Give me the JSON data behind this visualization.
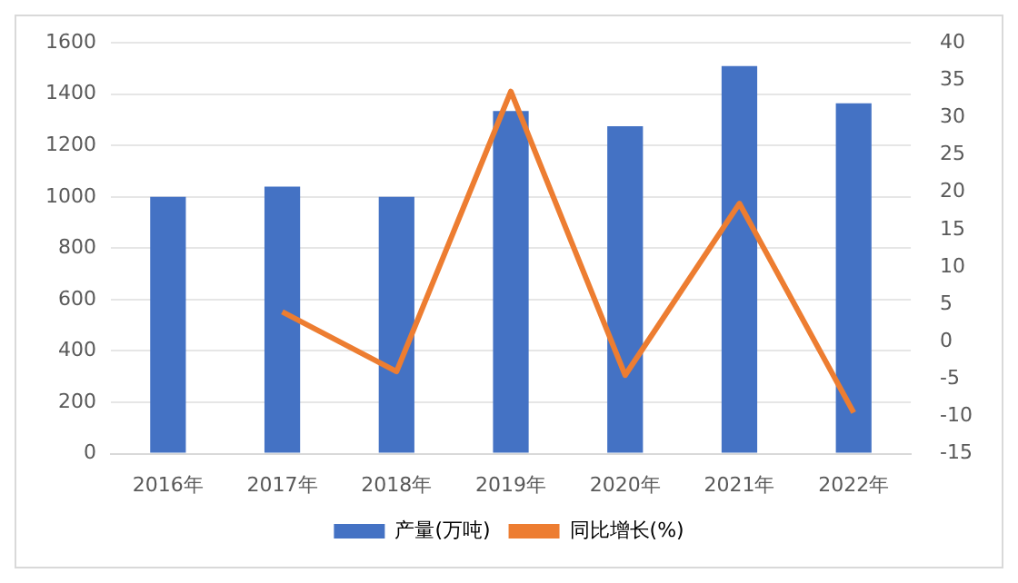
{
  "chart_data": {
    "type": "bar",
    "categories": [
      "2016年",
      "2017年",
      "2018年",
      "2019年",
      "2020年",
      "2021年",
      "2022年"
    ],
    "series": [
      {
        "name": "产量(万吨)",
        "color": "#4472c4",
        "values": [
          1000,
          1040,
          1000,
          1335,
          1275,
          1510,
          1365
        ]
      },
      {
        "name": "同比增长(%)",
        "type": "line",
        "axis": "y2",
        "color": "#ed7d31",
        "values": [
          null,
          4,
          -4,
          33.5,
          -4.5,
          18.5,
          -9.5
        ]
      }
    ],
    "ylim": [
      0,
      1600
    ],
    "yticks": [
      0,
      200,
      400,
      600,
      800,
      1000,
      1200,
      1400,
      1600
    ],
    "y2lim": [
      -15,
      40
    ],
    "y2ticks": [
      -15,
      -10,
      -5,
      0,
      5,
      10,
      15,
      20,
      25,
      30,
      35,
      40
    ],
    "grid": "y",
    "legend": "bottom",
    "marker": "none",
    "line_style": "solid"
  }
}
